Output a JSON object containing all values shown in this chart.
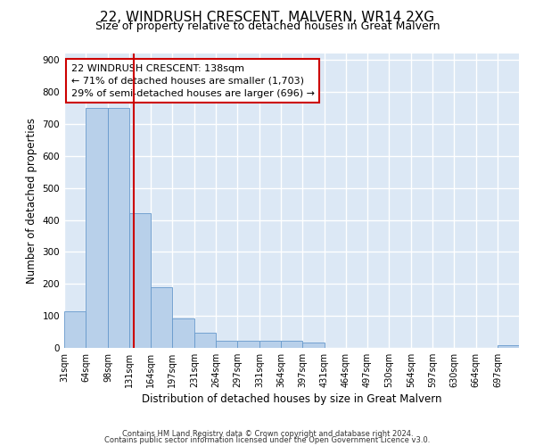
{
  "title": "22, WINDRUSH CRESCENT, MALVERN, WR14 2XG",
  "subtitle": "Size of property relative to detached houses in Great Malvern",
  "xlabel": "Distribution of detached houses by size in Great Malvern",
  "ylabel": "Number of detached properties",
  "footnote1": "Contains HM Land Registry data © Crown copyright and database right 2024.",
  "footnote2": "Contains public sector information licensed under the Open Government Licence v3.0.",
  "bar_edges": [
    31,
    64,
    98,
    131,
    164,
    197,
    231,
    264,
    297,
    331,
    364,
    397,
    431,
    464,
    497,
    530,
    564,
    597,
    630,
    664,
    697
  ],
  "bar_heights": [
    113,
    750,
    750,
    420,
    190,
    93,
    47,
    22,
    22,
    22,
    22,
    17,
    0,
    0,
    0,
    0,
    0,
    0,
    0,
    0,
    8
  ],
  "bar_color": "#b8d0ea",
  "bar_edgecolor": "#6699cc",
  "vline_x": 138,
  "vline_color": "#cc0000",
  "annotation_text": "22 WINDRUSH CRESCENT: 138sqm\n← 71% of detached houses are smaller (1,703)\n29% of semi-detached houses are larger (696) →",
  "annotation_box_color": "white",
  "annotation_box_edgecolor": "#cc0000",
  "ylim": [
    0,
    920
  ],
  "xlim": [
    31,
    730
  ],
  "bar_end": 730,
  "tick_labels": [
    "31sqm",
    "64sqm",
    "98sqm",
    "131sqm",
    "164sqm",
    "197sqm",
    "231sqm",
    "264sqm",
    "297sqm",
    "331sqm",
    "364sqm",
    "397sqm",
    "431sqm",
    "464sqm",
    "497sqm",
    "530sqm",
    "564sqm",
    "597sqm",
    "630sqm",
    "664sqm",
    "697sqm"
  ],
  "bg_color": "#dce8f5",
  "grid_color": "white",
  "title_fontsize": 11,
  "subtitle_fontsize": 9,
  "axis_label_fontsize": 8.5,
  "tick_fontsize": 7,
  "annotation_fontsize": 8,
  "yticks": [
    0,
    100,
    200,
    300,
    400,
    500,
    600,
    700,
    800,
    900
  ]
}
